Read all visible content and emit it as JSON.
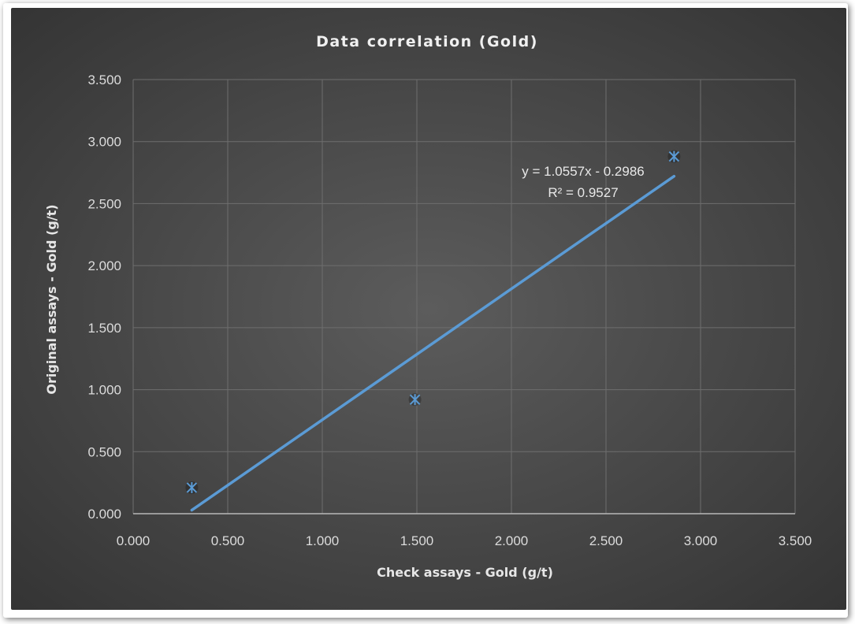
{
  "chart_data": {
    "type": "scatter",
    "title": "Data correlation (Gold)",
    "xlabel": "Check assays - Gold (g/t)",
    "ylabel": "Original assays - Gold (g/t)",
    "xlim": [
      0,
      3.5
    ],
    "ylim": [
      0,
      3.5
    ],
    "x_ticks": [
      "0.000",
      "0.500",
      "1.000",
      "1.500",
      "2.000",
      "2.500",
      "3.000",
      "3.500"
    ],
    "y_ticks": [
      "0.000",
      "0.500",
      "1.000",
      "1.500",
      "2.000",
      "2.500",
      "3.000",
      "3.500"
    ],
    "grid": true,
    "legend": "none",
    "series": [
      {
        "points": [
          {
            "x": 0.31,
            "y": 0.21
          },
          {
            "x": 1.49,
            "y": 0.92
          },
          {
            "x": 2.86,
            "y": 2.88
          }
        ],
        "marker": "asterisk",
        "color": "#5b9bd5"
      }
    ],
    "trendline": {
      "type": "linear",
      "slope": 1.0557,
      "intercept": -0.2986,
      "x_range": [
        0.31,
        2.86
      ],
      "equation": "y = 1.0557x - 0.2986",
      "r_squared": "R² = 0.9527",
      "color": "#5b9bd5"
    }
  }
}
